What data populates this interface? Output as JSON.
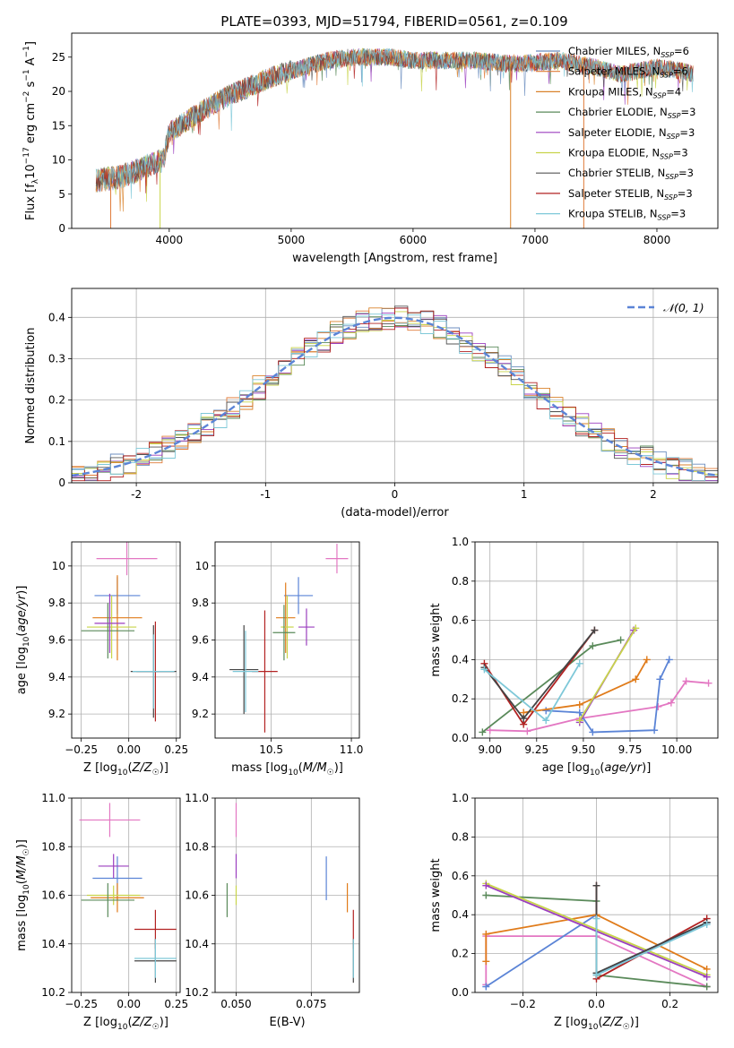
{
  "figure_title": "PLATE=0393, MJD=51794, FIBERID=0561, z=0.109",
  "colors": {
    "c_miles": "#6c8ebf",
    "s_miles": "#e07b39",
    "k_miles": "#d9822b",
    "c_elodie": "#5a8a5a",
    "s_elodie": "#9b3fbf",
    "k_elodie": "#c8d44a",
    "c_stelib": "#555555",
    "s_stelib": "#b22222",
    "k_stelib": "#7ec8d8",
    "pink": "#e377c2",
    "blue": "#5b84d6",
    "orange": "#e07b1a",
    "green": "#5a8a5a",
    "purple": "#9b3fbf",
    "yellow": "#c8d44a",
    "dark": "#444444",
    "red": "#b22222",
    "cyan": "#7ec8d8",
    "grid": "#b0b0b0"
  },
  "chart_data": [
    {
      "id": "spectrum",
      "type": "line",
      "title": "PLATE=0393, MJD=51794, FIBERID=0561, z=0.109",
      "xlabel": "wavelength [Angstrom, rest frame]",
      "ylabel": "Flux [f_λ 10^-17 erg cm^-2 s^-1 A^-1]",
      "xlim": [
        3200,
        8500
      ],
      "ylim": [
        0,
        28.5
      ],
      "xticks": [
        4000,
        5000,
        6000,
        7000,
        8000
      ],
      "yticks": [
        0,
        5,
        10,
        15,
        20,
        25
      ],
      "grid": false,
      "legend_position": "top-right",
      "series": [
        {
          "name": "Chabrier MILES, N_SSP=6",
          "color_key": "c_miles"
        },
        {
          "name": "Salpeter MILES, N_SSP=6",
          "color_key": "s_miles"
        },
        {
          "name": "Kroupa MILES, N_SSP=4",
          "color_key": "k_miles"
        },
        {
          "name": "Chabrier ELODIE, N_SSP=3",
          "color_key": "c_elodie"
        },
        {
          "name": "Salpeter ELODIE, N_SSP=3",
          "color_key": "s_elodie"
        },
        {
          "name": "Kroupa ELODIE, N_SSP=3",
          "color_key": "k_elodie"
        },
        {
          "name": "Chabrier STELIB, N_SSP=3",
          "color_key": "c_stelib"
        },
        {
          "name": "Salpeter STELIB, N_SSP=3",
          "color_key": "s_stelib"
        },
        {
          "name": "Kroupa STELIB, N_SSP=3",
          "color_key": "k_stelib"
        }
      ],
      "spectrum_continuum": {
        "wavelength": [
          3400,
          3600,
          3800,
          3950,
          4000,
          4300,
          4500,
          4700,
          4900,
          5100,
          5300,
          5500,
          5800,
          6000,
          6200,
          6500,
          6800,
          7000,
          7200,
          7500,
          7700,
          8000,
          8200,
          8300
        ],
        "flux": [
          7,
          7.5,
          9,
          10,
          14,
          17.5,
          19.5,
          21,
          22.5,
          23.5,
          24.5,
          25,
          25,
          24.5,
          24.5,
          24.5,
          24,
          24.2,
          24.5,
          23.5,
          22.5,
          23.5,
          23,
          22.5
        ]
      }
    },
    {
      "id": "residuals",
      "type": "histogram",
      "xlabel": "(data-model)/error",
      "ylabel": "Normed distribution",
      "xlim": [
        -2.5,
        2.5
      ],
      "ylim": [
        0,
        0.47
      ],
      "xticks": [
        -2,
        -1,
        0,
        1,
        2
      ],
      "yticks": [
        0.0,
        0.1,
        0.2,
        0.3,
        0.4
      ],
      "grid": true,
      "legend_position": "top-right",
      "legend": "N(0,1)",
      "legend_label": "𝒩(0, 1)",
      "normal": {
        "mean": 0,
        "sigma": 1
      }
    },
    {
      "id": "age_vs_Z",
      "type": "errorbar",
      "xlabel": "Z [log10(Z/Z☉)]",
      "ylabel": "age [log10(age/yr)]",
      "xlim": [
        -0.3,
        0.27
      ],
      "ylim": [
        9.07,
        10.13
      ],
      "xticks": [
        -0.25,
        0.0,
        0.25
      ],
      "xticklabels": [
        "−0.25",
        "0.00",
        "0.25"
      ],
      "yticks": [
        9.2,
        9.4,
        9.6,
        9.8,
        10.0
      ],
      "grid": true,
      "points": [
        {
          "x": -0.01,
          "xerr": 0.16,
          "y": 10.04,
          "yerr": 0.09,
          "color_key": "pink"
        },
        {
          "x": -0.06,
          "xerr": 0.12,
          "y": 9.84,
          "yerr": 0.1,
          "color_key": "blue"
        },
        {
          "x": -0.06,
          "xerr": 0.13,
          "y": 9.72,
          "yerr": 0.23,
          "color_key": "orange"
        },
        {
          "x": -0.09,
          "xerr": 0.13,
          "y": 9.67,
          "yerr": 0.17,
          "color_key": "yellow"
        },
        {
          "x": -0.11,
          "xerr": 0.14,
          "y": 9.65,
          "yerr": 0.15,
          "color_key": "green"
        },
        {
          "x": -0.1,
          "xerr": 0.08,
          "y": 9.69,
          "yerr": 0.16,
          "color_key": "purple"
        },
        {
          "x": 0.14,
          "xerr": 0.1,
          "y": 9.43,
          "yerr": 0.27,
          "color_key": "red"
        },
        {
          "x": 0.13,
          "xerr": 0.12,
          "y": 9.43,
          "yerr": 0.25,
          "color_key": "dark"
        },
        {
          "x": 0.13,
          "xerr": 0.11,
          "y": 9.43,
          "yerr": 0.2,
          "color_key": "cyan"
        }
      ]
    },
    {
      "id": "age_vs_mass",
      "type": "errorbar",
      "xlabel": "mass [log10(M/M☉)]",
      "xlim": [
        10.15,
        11.05
      ],
      "ylim": [
        9.07,
        10.13
      ],
      "xticks": [
        10.5,
        11.0
      ],
      "xticklabels": [
        "10.5",
        "11.0"
      ],
      "yticks": [
        9.2,
        9.4,
        9.6,
        9.8,
        10.0
      ],
      "grid": true,
      "points": [
        {
          "x": 10.91,
          "xerr": 0.07,
          "y": 10.04,
          "yerr": 0.08,
          "color_key": "pink"
        },
        {
          "x": 10.67,
          "xerr": 0.09,
          "y": 9.84,
          "yerr": 0.1,
          "color_key": "blue"
        },
        {
          "x": 10.59,
          "xerr": 0.06,
          "y": 9.72,
          "yerr": 0.19,
          "color_key": "orange"
        },
        {
          "x": 10.6,
          "xerr": 0.04,
          "y": 9.67,
          "yerr": 0.17,
          "color_key": "yellow"
        },
        {
          "x": 10.58,
          "xerr": 0.07,
          "y": 9.64,
          "yerr": 0.15,
          "color_key": "green"
        },
        {
          "x": 10.72,
          "xerr": 0.05,
          "y": 9.67,
          "yerr": 0.1,
          "color_key": "purple"
        },
        {
          "x": 10.46,
          "xerr": 0.08,
          "y": 9.43,
          "yerr": 0.33,
          "color_key": "red"
        },
        {
          "x": 10.33,
          "xerr": 0.09,
          "y": 9.44,
          "yerr": 0.24,
          "color_key": "dark"
        },
        {
          "x": 10.34,
          "xerr": 0.08,
          "y": 9.43,
          "yerr": 0.22,
          "color_key": "cyan"
        }
      ]
    },
    {
      "id": "mass_weight_vs_age",
      "type": "line",
      "xlabel": "age [log10(age/yr)]",
      "ylabel": "mass weight",
      "xlim": [
        8.92,
        10.22
      ],
      "ylim": [
        0,
        1
      ],
      "xticks": [
        9.0,
        9.25,
        9.5,
        9.75,
        10.0
      ],
      "xticklabels": [
        "9.00",
        "9.25",
        "9.50",
        "9.75",
        "10.00"
      ],
      "yticks": [
        0,
        0.2,
        0.4,
        0.6,
        0.8,
        1.0
      ],
      "yticklabels": [
        "0.0",
        "0.2",
        "0.4",
        "0.6",
        "0.8",
        "1.0"
      ],
      "grid": true,
      "series": [
        {
          "color_key": "pink",
          "x": [
            9.0,
            9.2,
            9.48,
            9.9,
            9.97,
            10.05,
            10.17
          ],
          "y": [
            0.04,
            0.035,
            0.1,
            0.16,
            0.18,
            0.29,
            0.28
          ]
        },
        {
          "color_key": "blue",
          "x": [
            9.3,
            9.48,
            9.55,
            9.88,
            9.91,
            9.96
          ],
          "y": [
            0.14,
            0.13,
            0.03,
            0.04,
            0.3,
            0.4
          ]
        },
        {
          "color_key": "orange",
          "x": [
            9.18,
            9.48,
            9.78,
            9.84
          ],
          "y": [
            0.13,
            0.17,
            0.3,
            0.4
          ]
        },
        {
          "color_key": "green",
          "x": [
            8.96,
            9.55,
            9.7
          ],
          "y": [
            0.03,
            0.47,
            0.5
          ]
        },
        {
          "color_key": "purple",
          "x": [
            9.48,
            9.77
          ],
          "y": [
            0.08,
            0.55
          ]
        },
        {
          "color_key": "yellow",
          "x": [
            9.48,
            9.78
          ],
          "y": [
            0.09,
            0.56
          ]
        },
        {
          "color_key": "red",
          "x": [
            8.97,
            9.18,
            9.56
          ],
          "y": [
            0.38,
            0.07,
            0.55
          ]
        },
        {
          "color_key": "dark",
          "x": [
            8.97,
            9.18,
            9.56
          ],
          "y": [
            0.36,
            0.1,
            0.55
          ]
        },
        {
          "color_key": "cyan",
          "x": [
            8.97,
            9.3,
            9.48
          ],
          "y": [
            0.35,
            0.09,
            0.38
          ]
        }
      ]
    },
    {
      "id": "mass_vs_Z",
      "type": "errorbar",
      "xlabel": "Z [log10(Z/Z☉)]",
      "ylabel": "mass [log10(M/M☉)]",
      "xlim": [
        -0.3,
        0.27
      ],
      "ylim": [
        10.2,
        11.0
      ],
      "xticks": [
        -0.25,
        0.0,
        0.25
      ],
      "xticklabels": [
        "−0.25",
        "0.00",
        "0.25"
      ],
      "yticks": [
        10.2,
        10.4,
        10.6,
        10.8,
        11.0
      ],
      "yticklabels": [
        "10.2",
        "10.4",
        "10.6",
        "10.8",
        "11.0"
      ],
      "grid": true,
      "points": [
        {
          "x": -0.1,
          "xerr": 0.16,
          "y": 10.91,
          "yerr": 0.07,
          "color_key": "pink"
        },
        {
          "x": -0.06,
          "xerr": 0.13,
          "y": 10.67,
          "yerr": 0.09,
          "color_key": "blue"
        },
        {
          "x": -0.06,
          "xerr": 0.14,
          "y": 10.59,
          "yerr": 0.06,
          "color_key": "orange"
        },
        {
          "x": -0.08,
          "xerr": 0.14,
          "y": 10.6,
          "yerr": 0.04,
          "color_key": "yellow"
        },
        {
          "x": -0.11,
          "xerr": 0.14,
          "y": 10.58,
          "yerr": 0.07,
          "color_key": "green"
        },
        {
          "x": -0.08,
          "xerr": 0.08,
          "y": 10.72,
          "yerr": 0.05,
          "color_key": "purple"
        },
        {
          "x": 0.14,
          "xerr": 0.11,
          "y": 10.46,
          "yerr": 0.08,
          "color_key": "red"
        },
        {
          "x": 0.14,
          "xerr": 0.11,
          "y": 10.33,
          "yerr": 0.09,
          "color_key": "dark"
        },
        {
          "x": 0.14,
          "xerr": 0.11,
          "y": 10.34,
          "yerr": 0.08,
          "color_key": "cyan"
        }
      ]
    },
    {
      "id": "mass_vs_ebv",
      "type": "errorbar",
      "xlabel": "E(B-V)",
      "xlim": [
        0.043,
        0.091
      ],
      "ylim": [
        10.2,
        11.0
      ],
      "xticks": [
        0.05,
        0.075
      ],
      "xticklabels": [
        "0.050",
        "0.075"
      ],
      "yticks": [
        10.2,
        10.4,
        10.6,
        10.8,
        11.0
      ],
      "yticklabels": [
        "10.2",
        "10.4",
        "10.6",
        "10.8",
        "11.0"
      ],
      "grid": true,
      "points": [
        {
          "x": 0.05,
          "y": 10.91,
          "yerr": 0.07,
          "color_key": "pink"
        },
        {
          "x": 0.08,
          "y": 10.67,
          "yerr": 0.09,
          "color_key": "blue"
        },
        {
          "x": 0.087,
          "y": 10.59,
          "yerr": 0.06,
          "color_key": "orange"
        },
        {
          "x": 0.05,
          "y": 10.6,
          "yerr": 0.04,
          "color_key": "yellow"
        },
        {
          "x": 0.047,
          "y": 10.58,
          "yerr": 0.07,
          "color_key": "green"
        },
        {
          "x": 0.05,
          "y": 10.72,
          "yerr": 0.05,
          "color_key": "purple"
        },
        {
          "x": 0.089,
          "y": 10.46,
          "yerr": 0.08,
          "color_key": "red"
        },
        {
          "x": 0.089,
          "y": 10.33,
          "yerr": 0.09,
          "color_key": "dark"
        },
        {
          "x": 0.089,
          "y": 10.34,
          "yerr": 0.08,
          "color_key": "cyan"
        }
      ]
    },
    {
      "id": "mass_weight_vs_Z",
      "type": "line",
      "xlabel": "Z [log10(Z/Z☉)]",
      "ylabel": "mass weight",
      "xlim": [
        -0.33,
        0.33
      ],
      "ylim": [
        0,
        1
      ],
      "xticks": [
        -0.2,
        0.0,
        0.2
      ],
      "xticklabels": [
        "−0.2",
        "0.0",
        "0.2"
      ],
      "yticks": [
        0,
        0.2,
        0.4,
        0.6,
        0.8,
        1.0
      ],
      "yticklabels": [
        "0.0",
        "0.2",
        "0.4",
        "0.6",
        "0.8",
        "1.0"
      ],
      "grid": true,
      "series": [
        {
          "color_key": "pink",
          "x": [
            -0.3,
            -0.3,
            0.0,
            0.3
          ],
          "y": [
            0.04,
            0.29,
            0.29,
            0.03
          ]
        },
        {
          "color_key": "blue",
          "x": [
            -0.3,
            0.0,
            0.0,
            0.3
          ],
          "y": [
            0.03,
            0.4,
            0.09,
            0.36
          ]
        },
        {
          "color_key": "orange",
          "x": [
            -0.3,
            -0.3,
            0.0,
            0.3
          ],
          "y": [
            0.16,
            0.3,
            0.4,
            0.12
          ]
        },
        {
          "color_key": "green",
          "x": [
            -0.3,
            0.0,
            0.0,
            0.3
          ],
          "y": [
            0.5,
            0.47,
            0.09,
            0.03
          ]
        },
        {
          "color_key": "yellow",
          "x": [
            -0.3,
            0.3
          ],
          "y": [
            0.56,
            0.09
          ]
        },
        {
          "color_key": "purple",
          "x": [
            -0.3,
            0.3
          ],
          "y": [
            0.55,
            0.08
          ]
        },
        {
          "color_key": "red",
          "x": [
            0.0,
            0.0,
            0.3
          ],
          "y": [
            0.55,
            0.07,
            0.38
          ]
        },
        {
          "color_key": "dark",
          "x": [
            0.0,
            0.0,
            0.3
          ],
          "y": [
            0.55,
            0.1,
            0.36
          ]
        },
        {
          "color_key": "cyan",
          "x": [
            0.0,
            0.0,
            0.3
          ],
          "y": [
            0.38,
            0.09,
            0.35
          ]
        }
      ]
    }
  ]
}
